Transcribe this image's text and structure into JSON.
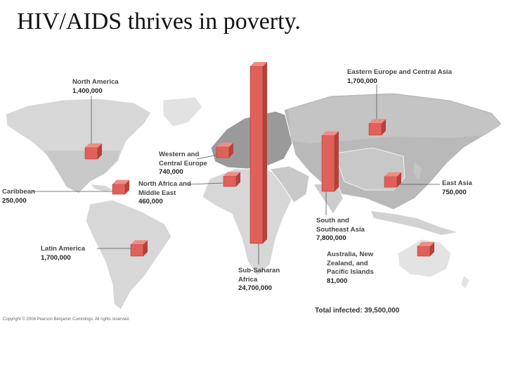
{
  "slide": {
    "title": "HIV/AIDS thrives in poverty."
  },
  "map": {
    "colors": {
      "ocean": "#ffffff",
      "land_light": "#d7d7d7",
      "land_dark": "#b9b9b9",
      "land_europe": "#9a9a9a",
      "bar_front": "#e0605a",
      "bar_side": "#b8403b",
      "bar_top": "#f08c86",
      "leader": "#555555"
    },
    "regions": [
      {
        "id": "north-america",
        "name": "North America",
        "value": "1,400,000"
      },
      {
        "id": "eastern-europe-central-asia",
        "name": "Eastern Europe and Central Asia",
        "value": "1,700,000"
      },
      {
        "id": "western-central-europe",
        "name": "Western and Central Europe",
        "value": "740,000"
      },
      {
        "id": "north-africa-middle-east",
        "name": "North Africa and Middle East",
        "value": "460,000"
      },
      {
        "id": "caribbean",
        "name": "Caribbean",
        "value": "250,000"
      },
      {
        "id": "east-asia",
        "name": "East Asia",
        "value": "750,000"
      },
      {
        "id": "south-southeast-asia",
        "name": "South and Southeast Asia",
        "value": "7,800,000"
      },
      {
        "id": "latin-america",
        "name": "Latin America",
        "value": "1,700,000"
      },
      {
        "id": "australia-nz-pacific",
        "name": "Australia, New Zealand, and Pacific Islands",
        "value": "81,000"
      },
      {
        "id": "sub-saharan-africa",
        "name": "Sub-Saharan Africa",
        "value": "24,700,000"
      }
    ],
    "total_infected": "Total infected: 39,500,000",
    "copyright": "Copyright © 2008 Pearson Benjamin Cummings. All rights reserved."
  }
}
